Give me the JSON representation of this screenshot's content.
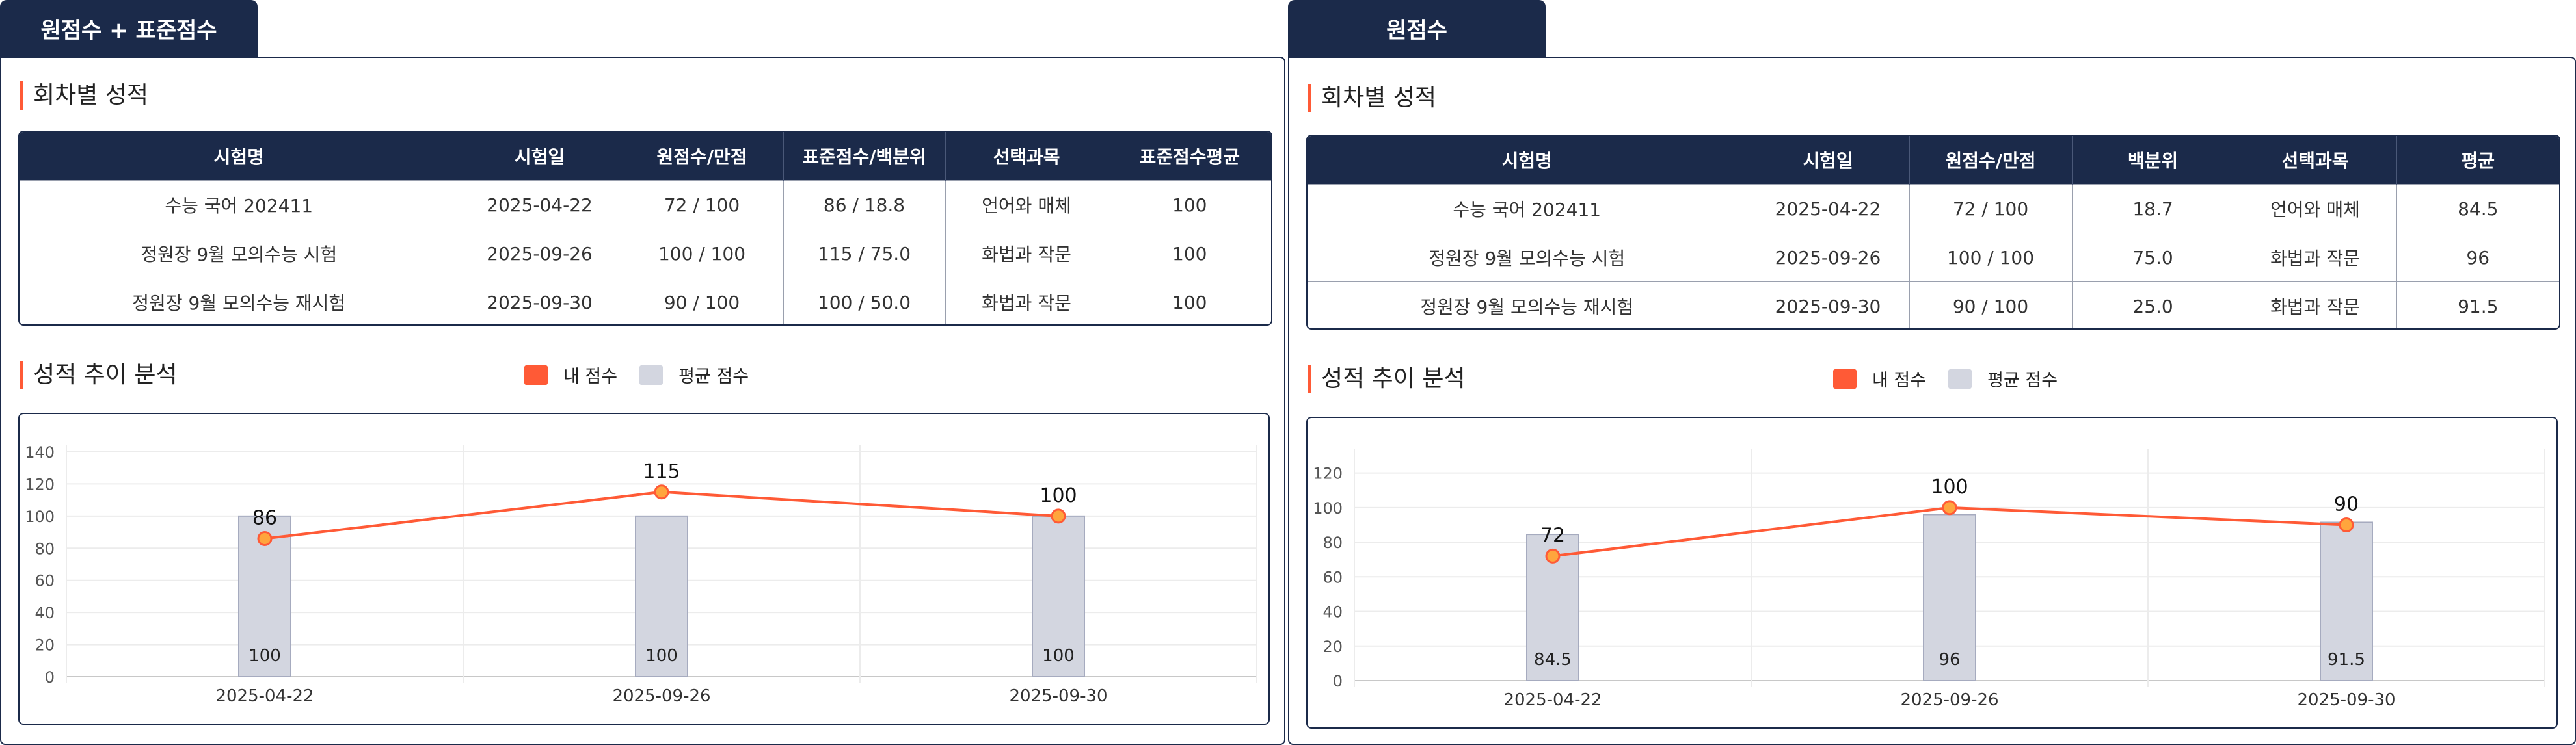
{
  "panels": [
    {
      "tab_label": "원점수 + 표준점수",
      "section_results": "회차별 성적",
      "columns": [
        "시험명",
        "시험일",
        "원점수/만점",
        "표준점수/백분위",
        "선택과목",
        "표준점수평균"
      ],
      "rows": [
        [
          "수능 국어 202411",
          "2025-04-22",
          "72 / 100",
          "86 / 18.8",
          "언어와 매체",
          "100"
        ],
        [
          "정원장 9월 모의수능 시험",
          "2025-09-26",
          "100 / 100",
          "115 / 75.0",
          "화법과 작문",
          "100"
        ],
        [
          "정원장 9월 모의수능 재시험",
          "2025-09-30",
          "90 / 100",
          "100 / 50.0",
          "화법과 작문",
          "100"
        ]
      ],
      "section_trend": "성적 추이 분석",
      "legend": {
        "mine": "내 점수",
        "average": "평균 점수"
      }
    },
    {
      "tab_label": "원점수",
      "section_results": "회차별 성적",
      "columns": [
        "시험명",
        "시험일",
        "원점수/만점",
        "백분위",
        "선택과목",
        "평균"
      ],
      "rows": [
        [
          "수능 국어 202411",
          "2025-04-22",
          "72 / 100",
          "18.7",
          "언어와 매체",
          "84.5"
        ],
        [
          "정원장 9월 모의수능 시험",
          "2025-09-26",
          "100 / 100",
          "75.0",
          "화법과 작문",
          "96"
        ],
        [
          "정원장 9월 모의수능 재시험",
          "2025-09-30",
          "90 / 100",
          "25.0",
          "화법과 작문",
          "91.5"
        ]
      ],
      "section_trend": "성적 추이 분석",
      "legend": {
        "mine": "내 점수",
        "average": "평균 점수"
      }
    }
  ],
  "colors": {
    "navy": "#1b2a4a",
    "accent": "#ff5a36",
    "bar": "#d3d6e0",
    "point": "#ffa53d"
  },
  "chart_data": [
    {
      "type": "bar",
      "categories": [
        "2025-04-22",
        "2025-09-26",
        "2025-09-30"
      ],
      "series": [
        {
          "name": "내 점수",
          "type": "line",
          "values": [
            86,
            115,
            100
          ],
          "labels": [
            "86",
            "115",
            "100"
          ]
        },
        {
          "name": "평균 점수",
          "type": "bar",
          "values": [
            100,
            100,
            100
          ],
          "labels": [
            "100",
            "100",
            "100"
          ]
        }
      ],
      "yticks": [
        "0",
        "20",
        "40",
        "60",
        "80",
        "100",
        "120",
        "140"
      ],
      "ylim": [
        0,
        140
      ],
      "grid": true,
      "legend_position": "top"
    },
    {
      "type": "bar",
      "categories": [
        "2025-04-22",
        "2025-09-26",
        "2025-09-30"
      ],
      "series": [
        {
          "name": "내 점수",
          "type": "line",
          "values": [
            72,
            100,
            90
          ],
          "labels": [
            "72",
            "100",
            "90"
          ]
        },
        {
          "name": "평균 점수",
          "type": "bar",
          "values": [
            84.5,
            96,
            91.5
          ],
          "labels": [
            "84.5",
            "96",
            "91.5"
          ]
        }
      ],
      "yticks": [
        "0",
        "20",
        "40",
        "60",
        "80",
        "100",
        "120"
      ],
      "ylim": [
        0,
        130
      ],
      "grid": true,
      "legend_position": "top"
    }
  ]
}
